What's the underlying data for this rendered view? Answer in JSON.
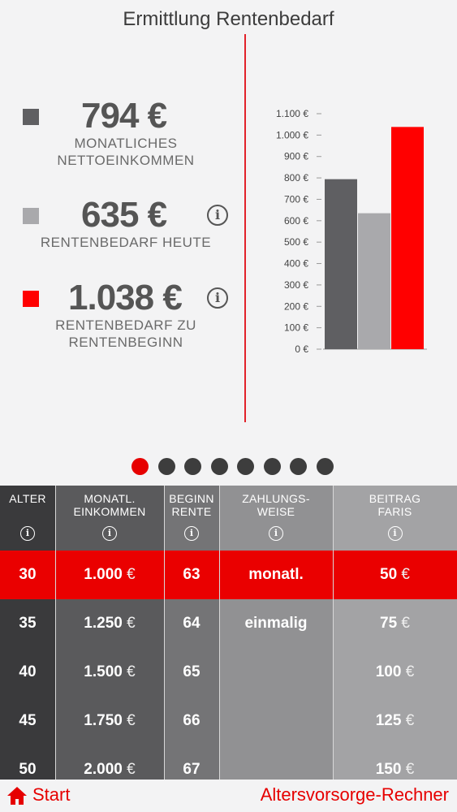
{
  "header": {
    "title": "Ermittlung Rentenbedarf"
  },
  "stats": [
    {
      "value": "794 €",
      "label_line1": "MONATLICHES",
      "label_line2": "NETTOEINKOMMEN",
      "color": "#5f5f62",
      "info": false
    },
    {
      "value": "635 €",
      "label_line1": "RENTENBEDARF HEUTE",
      "label_line2": "",
      "color": "#a9a9ac",
      "info": true
    },
    {
      "value": "1.038 €",
      "label_line1": "RENTENBEDARF ZU",
      "label_line2": "RENTENBEGINN",
      "color": "#ff0000",
      "info": true
    }
  ],
  "info_glyph": "i",
  "chart_data": {
    "type": "bar",
    "categories": [
      "Monatliches Nettoeinkommen",
      "Rentenbedarf heute",
      "Rentenbedarf zu Rentenbeginn"
    ],
    "values": [
      794,
      635,
      1038
    ],
    "colors": [
      "#5f5f62",
      "#a9a9ac",
      "#ff0000"
    ],
    "ylim": [
      0,
      1100
    ],
    "yticks": [
      0,
      100,
      200,
      300,
      400,
      500,
      600,
      700,
      800,
      900,
      1000,
      1100
    ],
    "ytick_labels": [
      "0 €",
      "100 €",
      "200 €",
      "300 €",
      "400 €",
      "500 €",
      "600 €",
      "700 €",
      "800 €",
      "900 €",
      "1.000 €",
      "1.100 €"
    ]
  },
  "pager": {
    "count": 8,
    "active_index": 0
  },
  "table": {
    "columns": [
      {
        "header_line1": "ALTER",
        "header_line2": "",
        "bg": "#3a3a3c",
        "rows": [
          "30",
          "35",
          "40",
          "45",
          "50"
        ],
        "currency": false
      },
      {
        "header_line1": "MONATL.",
        "header_line2": "EINKOMMEN",
        "bg": "#5a5a5c",
        "rows": [
          "1.000",
          "1.250",
          "1.500",
          "1.750",
          "2.000"
        ],
        "currency": true
      },
      {
        "header_line1": "BEGINN",
        "header_line2": "RENTE",
        "bg": "#747476",
        "rows": [
          "63",
          "64",
          "65",
          "66",
          "67"
        ],
        "currency": false
      },
      {
        "header_line1": "ZAHLUNGS-",
        "header_line2": "WEISE",
        "bg": "#919193",
        "rows": [
          "monatl.",
          "einmalig",
          "",
          "",
          ""
        ],
        "currency": false
      },
      {
        "header_line1": "BEITRAG",
        "header_line2": "FARIS",
        "bg": "#a3a3a5",
        "rows": [
          "50",
          "75",
          "100",
          "125",
          "150"
        ],
        "currency": true
      }
    ],
    "currency_symbol": "€",
    "selected_row": 0,
    "selected_color": "#ea0000"
  },
  "footer": {
    "start_label": "Start",
    "app_name": "Altersvorsorge-Rechner",
    "accent": "#e60000"
  }
}
